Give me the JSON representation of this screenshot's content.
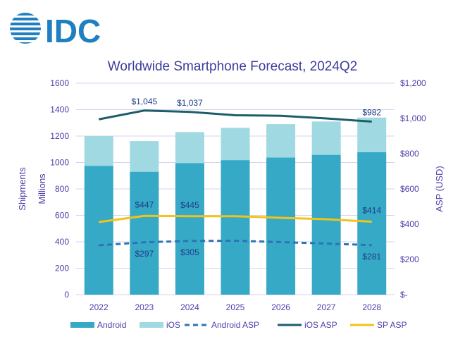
{
  "logo_text": "IDC",
  "colors": {
    "android": "#35a9c6",
    "ios": "#a1d9e3",
    "android_asp": "#2d74b4",
    "ios_asp": "#1d5e6a",
    "sp_asp": "#f2c318",
    "axis_text": "#4b3fa8",
    "title": "#3b3d9e",
    "grid": "#d6d3ee"
  },
  "chart_data": {
    "type": "bar",
    "title": "Worldwide Smartphone Forecast, 2024Q2",
    "ylabel": "Shipments",
    "ylabel_units": "Millions",
    "y2label": "ASP (USD)",
    "ylim": [
      0,
      1600
    ],
    "y2lim": [
      0,
      1200
    ],
    "yticks": [
      "0",
      "200",
      "400",
      "600",
      "800",
      "1000",
      "1200",
      "1400",
      "1600"
    ],
    "y2ticks": [
      "$-",
      "$200",
      "$400",
      "$600",
      "$800",
      "$1,000",
      "$1,200"
    ],
    "grid": true,
    "legend_position": "bottom",
    "categories": [
      "2022",
      "2023",
      "2024",
      "2025",
      "2026",
      "2027",
      "2028"
    ],
    "series": [
      {
        "name": "Android",
        "kind": "stacked-bar",
        "axis": "left",
        "values": [
          975,
          930,
          995,
          1018,
          1038,
          1058,
          1078
        ]
      },
      {
        "name": "iOS",
        "kind": "stacked-bar",
        "axis": "left",
        "values": [
          225,
          232,
          235,
          244,
          252,
          252,
          262
        ]
      },
      {
        "name": "Android ASP",
        "kind": "dashed-line",
        "axis": "right",
        "values": [
          280,
          297,
          305,
          306,
          298,
          290,
          281
        ],
        "labels": [
          "",
          "$297",
          "$305",
          "",
          "",
          "",
          "$281"
        ]
      },
      {
        "name": "iOS ASP",
        "kind": "line",
        "axis": "right",
        "values": [
          995,
          1045,
          1037,
          1018,
          1015,
          1000,
          982
        ],
        "labels": [
          "",
          "$1,045",
          "$1,037",
          "",
          "",
          "",
          "$982"
        ]
      },
      {
        "name": "SP ASP",
        "kind": "line",
        "axis": "right",
        "values": [
          412,
          447,
          445,
          445,
          436,
          428,
          414
        ],
        "labels": [
          "",
          "$447",
          "$445",
          "",
          "",
          "",
          "$414"
        ]
      }
    ]
  }
}
